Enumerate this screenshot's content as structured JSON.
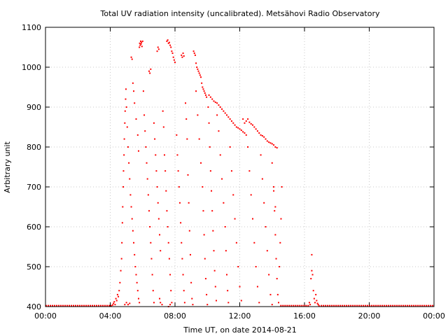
{
  "chart_data": {
    "type": "scatter",
    "title": "Total UV radiation intensity (uncalibrated). Metsähovi Radio Observatory",
    "xlabel": "Time UT, on date 2014-08-21",
    "ylabel": "Arbitrary unit",
    "x_unit": "hours UT",
    "xlim": [
      0,
      24
    ],
    "ylim": [
      400,
      1100
    ],
    "x_ticks": [
      {
        "value": 0,
        "label": "00:00"
      },
      {
        "value": 4,
        "label": "04:00"
      },
      {
        "value": 8,
        "label": "08:00"
      },
      {
        "value": 12,
        "label": "12:00"
      },
      {
        "value": 16,
        "label": "16:00"
      },
      {
        "value": 20,
        "label": "20:00"
      },
      {
        "value": 24,
        "label": "00:00"
      }
    ],
    "y_ticks": [
      {
        "value": 400,
        "label": "400"
      },
      {
        "value": 500,
        "label": "500"
      },
      {
        "value": 600,
        "label": "600"
      },
      {
        "value": 700,
        "label": "700"
      },
      {
        "value": 800,
        "label": "800"
      },
      {
        "value": 900,
        "label": "900"
      },
      {
        "value": 1000,
        "label": "1000"
      },
      {
        "value": 1100,
        "label": "1100"
      }
    ],
    "grid": true,
    "color": "#ff0000",
    "baseline_segments": [
      {
        "x_start": 0,
        "x_end": 4.1,
        "y": 402
      },
      {
        "x_start": 14.5,
        "x_end": 16.3,
        "y": 402
      },
      {
        "x_start": 17.0,
        "x_end": 24,
        "y": 402
      }
    ],
    "points": [
      [
        4.15,
        404
      ],
      [
        4.2,
        408
      ],
      [
        4.25,
        412
      ],
      [
        4.3,
        405
      ],
      [
        4.35,
        420
      ],
      [
        4.4,
        415
      ],
      [
        4.45,
        430
      ],
      [
        4.5,
        425
      ],
      [
        4.55,
        440
      ],
      [
        4.6,
        460
      ],
      [
        4.65,
        490
      ],
      [
        4.7,
        520
      ],
      [
        4.72,
        560
      ],
      [
        4.75,
        610
      ],
      [
        4.77,
        650
      ],
      [
        4.8,
        700
      ],
      [
        4.82,
        740
      ],
      [
        4.85,
        780
      ],
      [
        4.87,
        820
      ],
      [
        4.9,
        860
      ],
      [
        4.92,
        890
      ],
      [
        4.95,
        920
      ],
      [
        4.97,
        945
      ],
      [
        5.0,
        900
      ],
      [
        5.05,
        850
      ],
      [
        5.1,
        800
      ],
      [
        5.15,
        760
      ],
      [
        5.2,
        720
      ],
      [
        5.25,
        680
      ],
      [
        5.3,
        650
      ],
      [
        5.35,
        620
      ],
      [
        5.4,
        590
      ],
      [
        5.45,
        560
      ],
      [
        5.5,
        530
      ],
      [
        5.55,
        500
      ],
      [
        5.6,
        480
      ],
      [
        5.65,
        460
      ],
      [
        5.7,
        440
      ],
      [
        5.75,
        420
      ],
      [
        5.8,
        410
      ],
      [
        4.9,
        405
      ],
      [
        5.0,
        410
      ],
      [
        5.1,
        405
      ],
      [
        5.2,
        408
      ],
      [
        5.3,
        1025
      ],
      [
        5.35,
        1020
      ],
      [
        5.4,
        960
      ],
      [
        5.45,
        940
      ],
      [
        5.5,
        910
      ],
      [
        5.6,
        870
      ],
      [
        5.7,
        830
      ],
      [
        5.75,
        790
      ],
      [
        5.8,
        1050
      ],
      [
        5.82,
        1060
      ],
      [
        5.85,
        1055
      ],
      [
        5.88,
        1065
      ],
      [
        5.9,
        1058
      ],
      [
        5.93,
        1062
      ],
      [
        5.96,
        1052
      ],
      [
        6.0,
        1065
      ],
      [
        6.05,
        940
      ],
      [
        6.1,
        880
      ],
      [
        6.15,
        840
      ],
      [
        6.2,
        800
      ],
      [
        6.25,
        760
      ],
      [
        6.3,
        720
      ],
      [
        6.35,
        680
      ],
      [
        6.4,
        640
      ],
      [
        6.45,
        600
      ],
      [
        6.5,
        560
      ],
      [
        6.55,
        520
      ],
      [
        6.6,
        480
      ],
      [
        6.65,
        440
      ],
      [
        6.7,
        410
      ],
      [
        6.4,
        990
      ],
      [
        6.45,
        985
      ],
      [
        6.5,
        995
      ],
      [
        6.7,
        860
      ],
      [
        6.75,
        820
      ],
      [
        6.8,
        780
      ],
      [
        6.85,
        740
      ],
      [
        6.9,
        700
      ],
      [
        6.95,
        660
      ],
      [
        7.0,
        620
      ],
      [
        7.05,
        580
      ],
      [
        7.1,
        540
      ],
      [
        6.9,
        1040
      ],
      [
        6.95,
        1050
      ],
      [
        7.0,
        1045
      ],
      [
        7.05,
        420
      ],
      [
        7.1,
        410
      ],
      [
        7.2,
        405
      ],
      [
        7.25,
        890
      ],
      [
        7.3,
        850
      ],
      [
        7.35,
        780
      ],
      [
        7.4,
        740
      ],
      [
        7.45,
        690
      ],
      [
        7.5,
        640
      ],
      [
        7.55,
        600
      ],
      [
        7.6,
        560
      ],
      [
        7.65,
        520
      ],
      [
        7.7,
        480
      ],
      [
        7.75,
        440
      ],
      [
        7.8,
        410
      ],
      [
        7.5,
        1065
      ],
      [
        7.55,
        1068
      ],
      [
        7.6,
        1060
      ],
      [
        7.65,
        1062
      ],
      [
        7.7,
        1055
      ],
      [
        7.75,
        1050
      ],
      [
        7.8,
        1040
      ],
      [
        7.85,
        1035
      ],
      [
        7.9,
        1025
      ],
      [
        7.95,
        1018
      ],
      [
        8.0,
        1012
      ],
      [
        7.6,
        400
      ],
      [
        7.7,
        405
      ],
      [
        8.1,
        830
      ],
      [
        8.15,
        780
      ],
      [
        8.2,
        740
      ],
      [
        8.25,
        700
      ],
      [
        8.3,
        660
      ],
      [
        8.35,
        610
      ],
      [
        8.4,
        560
      ],
      [
        8.45,
        520
      ],
      [
        8.5,
        480
      ],
      [
        8.55,
        440
      ],
      [
        8.6,
        410
      ],
      [
        8.4,
        1030
      ],
      [
        8.45,
        1025
      ],
      [
        8.5,
        1035
      ],
      [
        8.55,
        1028
      ],
      [
        8.65,
        910
      ],
      [
        8.7,
        870
      ],
      [
        8.75,
        820
      ],
      [
        8.8,
        730
      ],
      [
        8.85,
        660
      ],
      [
        8.9,
        590
      ],
      [
        8.95,
        530
      ],
      [
        9.0,
        460
      ],
      [
        9.05,
        420
      ],
      [
        9.1,
        405
      ],
      [
        9.15,
        1040
      ],
      [
        9.2,
        1035
      ],
      [
        9.25,
        1030
      ],
      [
        9.3,
        1010
      ],
      [
        9.35,
        1000
      ],
      [
        9.4,
        995
      ],
      [
        9.45,
        990
      ],
      [
        9.5,
        985
      ],
      [
        9.55,
        980
      ],
      [
        9.6,
        975
      ],
      [
        9.65,
        960
      ],
      [
        9.7,
        950
      ],
      [
        9.75,
        945
      ],
      [
        9.8,
        940
      ],
      [
        9.85,
        935
      ],
      [
        9.9,
        930
      ],
      [
        9.95,
        925
      ],
      [
        9.3,
        940
      ],
      [
        9.4,
        880
      ],
      [
        9.5,
        820
      ],
      [
        9.6,
        760
      ],
      [
        9.7,
        700
      ],
      [
        9.75,
        640
      ],
      [
        9.8,
        580
      ],
      [
        9.85,
        520
      ],
      [
        9.9,
        470
      ],
      [
        9.95,
        430
      ],
      [
        10.0,
        405
      ],
      [
        10.05,
        900
      ],
      [
        10.1,
        860
      ],
      [
        10.15,
        800
      ],
      [
        10.2,
        740
      ],
      [
        10.25,
        690
      ],
      [
        10.3,
        640
      ],
      [
        10.35,
        590
      ],
      [
        10.4,
        540
      ],
      [
        10.45,
        490
      ],
      [
        10.5,
        450
      ],
      [
        10.55,
        415
      ],
      [
        10.1,
        930
      ],
      [
        10.2,
        925
      ],
      [
        10.3,
        920
      ],
      [
        10.4,
        915
      ],
      [
        10.5,
        912
      ],
      [
        10.6,
        910
      ],
      [
        10.7,
        905
      ],
      [
        10.8,
        900
      ],
      [
        10.9,
        895
      ],
      [
        11.0,
        890
      ],
      [
        11.1,
        885
      ],
      [
        11.2,
        880
      ],
      [
        11.3,
        875
      ],
      [
        11.4,
        870
      ],
      [
        11.5,
        865
      ],
      [
        11.6,
        860
      ],
      [
        11.7,
        855
      ],
      [
        11.8,
        850
      ],
      [
        11.9,
        848
      ],
      [
        12.0,
        845
      ],
      [
        12.1,
        842
      ],
      [
        12.2,
        838
      ],
      [
        12.3,
        835
      ],
      [
        12.4,
        830
      ],
      [
        10.6,
        880
      ],
      [
        10.7,
        840
      ],
      [
        10.8,
        780
      ],
      [
        10.9,
        720
      ],
      [
        11.0,
        660
      ],
      [
        11.1,
        600
      ],
      [
        11.15,
        540
      ],
      [
        11.2,
        480
      ],
      [
        11.25,
        440
      ],
      [
        11.3,
        410
      ],
      [
        11.4,
        800
      ],
      [
        11.5,
        740
      ],
      [
        11.6,
        680
      ],
      [
        11.7,
        620
      ],
      [
        11.8,
        560
      ],
      [
        11.9,
        500
      ],
      [
        12.0,
        450
      ],
      [
        12.1,
        415
      ],
      [
        12.2,
        870
      ],
      [
        12.3,
        860
      ],
      [
        12.4,
        865
      ],
      [
        12.5,
        870
      ],
      [
        12.6,
        862
      ],
      [
        12.7,
        858
      ],
      [
        12.5,
        800
      ],
      [
        12.6,
        740
      ],
      [
        12.7,
        680
      ],
      [
        12.8,
        620
      ],
      [
        12.9,
        560
      ],
      [
        13.0,
        500
      ],
      [
        13.1,
        450
      ],
      [
        13.2,
        410
      ],
      [
        12.8,
        855
      ],
      [
        12.9,
        850
      ],
      [
        13.0,
        845
      ],
      [
        13.1,
        840
      ],
      [
        13.2,
        835
      ],
      [
        13.3,
        830
      ],
      [
        13.4,
        828
      ],
      [
        13.5,
        825
      ],
      [
        13.3,
        780
      ],
      [
        13.4,
        720
      ],
      [
        13.5,
        660
      ],
      [
        13.6,
        600
      ],
      [
        13.7,
        540
      ],
      [
        13.8,
        480
      ],
      [
        13.9,
        430
      ],
      [
        14.0,
        405
      ],
      [
        13.6,
        820
      ],
      [
        13.7,
        815
      ],
      [
        13.8,
        812
      ],
      [
        13.9,
        810
      ],
      [
        14.0,
        808
      ],
      [
        14.1,
        805
      ],
      [
        14.2,
        800
      ],
      [
        14.3,
        798
      ],
      [
        14.0,
        760
      ],
      [
        14.1,
        700
      ],
      [
        14.15,
        640
      ],
      [
        14.2,
        580
      ],
      [
        14.25,
        520
      ],
      [
        14.3,
        470
      ],
      [
        14.35,
        430
      ],
      [
        14.4,
        410
      ],
      [
        14.45,
        500
      ],
      [
        14.5,
        560
      ],
      [
        14.55,
        620
      ],
      [
        14.6,
        700
      ],
      [
        14.1,
        690
      ],
      [
        14.2,
        650
      ],
      [
        16.4,
        470
      ],
      [
        16.45,
        490
      ],
      [
        16.5,
        480
      ],
      [
        16.55,
        440
      ],
      [
        16.6,
        420
      ],
      [
        16.65,
        410
      ],
      [
        16.7,
        430
      ],
      [
        16.75,
        415
      ],
      [
        16.8,
        408
      ],
      [
        16.85,
        405
      ],
      [
        16.9,
        402
      ],
      [
        16.3,
        410
      ],
      [
        16.35,
        405
      ],
      [
        16.45,
        530
      ]
    ]
  }
}
